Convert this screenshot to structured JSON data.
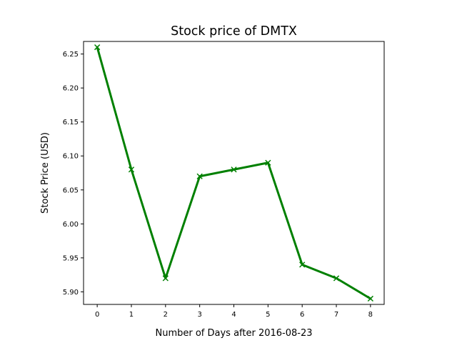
{
  "chart_data": {
    "type": "line",
    "title": "Stock price of DMTX",
    "xlabel": "Number of Days after 2016-08-23",
    "ylabel": "Stock Price (USD)",
    "x": [
      0,
      1,
      2,
      3,
      4,
      5,
      6,
      7,
      8
    ],
    "series": [
      {
        "values": [
          6.26,
          6.08,
          5.92,
          6.07,
          6.08,
          6.09,
          5.94,
          5.92,
          5.89
        ]
      }
    ],
    "xlim": [
      -0.4,
      8.4
    ],
    "ylim": [
      5.8815,
      6.2685
    ],
    "xticks": [
      "0",
      "1",
      "2",
      "3",
      "4",
      "5",
      "6",
      "7",
      "8"
    ],
    "yticks": [
      "5.90",
      "5.95",
      "6.00",
      "6.05",
      "6.10",
      "6.15",
      "6.20",
      "6.25"
    ],
    "line_color": "#008000",
    "marker": "x",
    "grid": false,
    "legend": "none"
  }
}
